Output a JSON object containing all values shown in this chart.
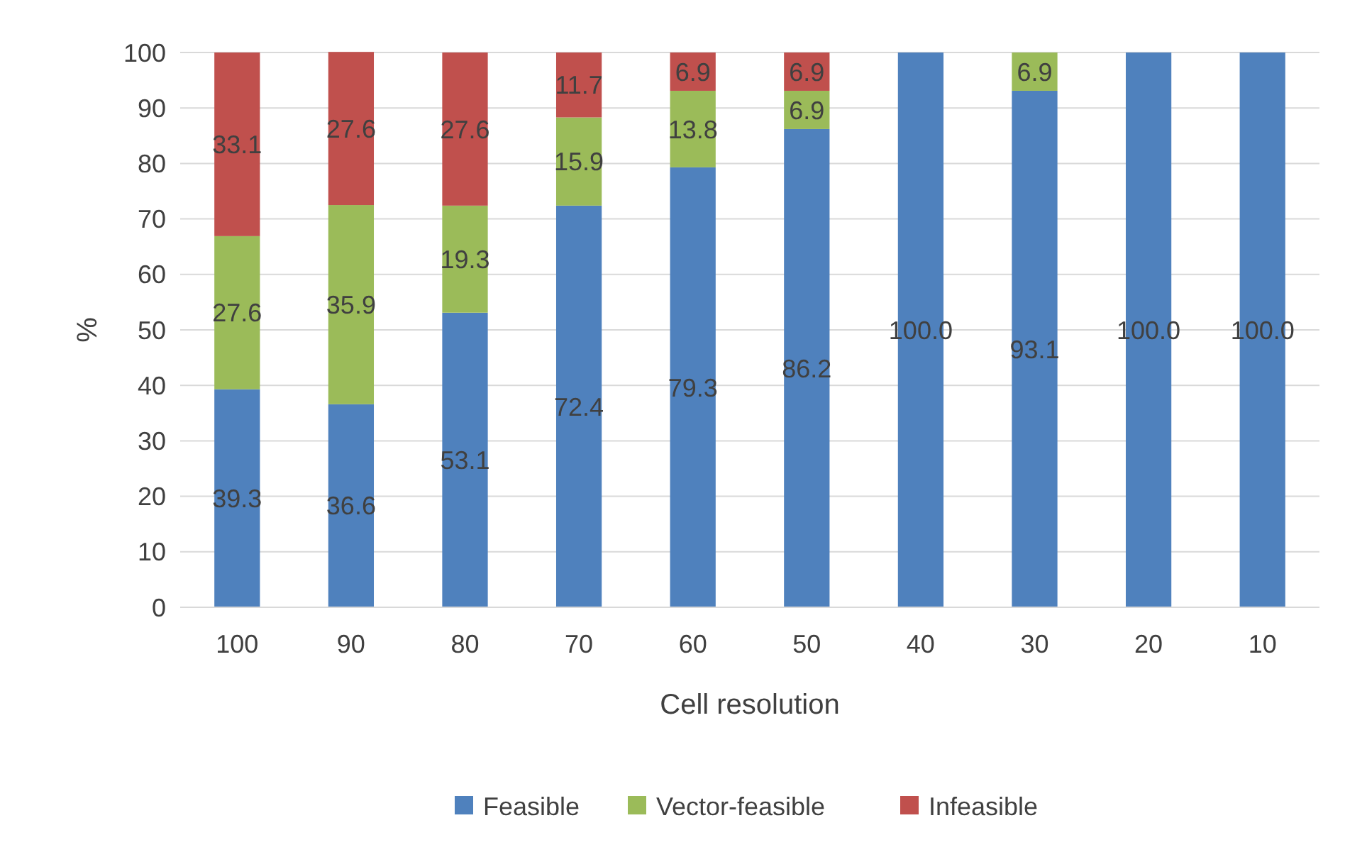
{
  "chart_data": {
    "type": "bar",
    "stacked": true,
    "xlabel": "Cell resolution",
    "ylabel": "%",
    "categories": [
      "100",
      "90",
      "80",
      "70",
      "60",
      "50",
      "40",
      "30",
      "20",
      "10"
    ],
    "ylim": [
      0,
      100
    ],
    "yticks": [
      0,
      10,
      20,
      30,
      40,
      50,
      60,
      70,
      80,
      90,
      100
    ],
    "grid": "y",
    "legend": "bottom",
    "series": [
      {
        "name": "Feasible",
        "color": "#4f81bd",
        "values": [
          39.3,
          36.6,
          53.1,
          72.4,
          79.3,
          86.2,
          100.0,
          93.1,
          100.0,
          100.0
        ],
        "value_labels": [
          "39.3",
          "36.6",
          "53.1",
          "72.4",
          "79.3",
          "86.2",
          "100.0",
          "93.1",
          "100.0",
          "100.0"
        ]
      },
      {
        "name": "Vector-feasible",
        "color": "#9bbb59",
        "values": [
          27.6,
          35.9,
          19.3,
          15.9,
          13.8,
          6.9,
          null,
          6.9,
          null,
          null
        ],
        "value_labels": [
          "27.6",
          "35.9",
          "19.3",
          "15.9",
          "13.8",
          "6.9",
          null,
          "6.9",
          null,
          null
        ]
      },
      {
        "name": "Infeasible",
        "color": "#c0504d",
        "values": [
          33.1,
          27.6,
          27.6,
          11.7,
          6.9,
          6.9,
          null,
          null,
          null,
          null
        ],
        "value_labels": [
          "33.1",
          "27.6",
          "27.6",
          "11.7",
          "6.9",
          "6.9",
          null,
          null,
          null,
          null
        ]
      }
    ]
  }
}
